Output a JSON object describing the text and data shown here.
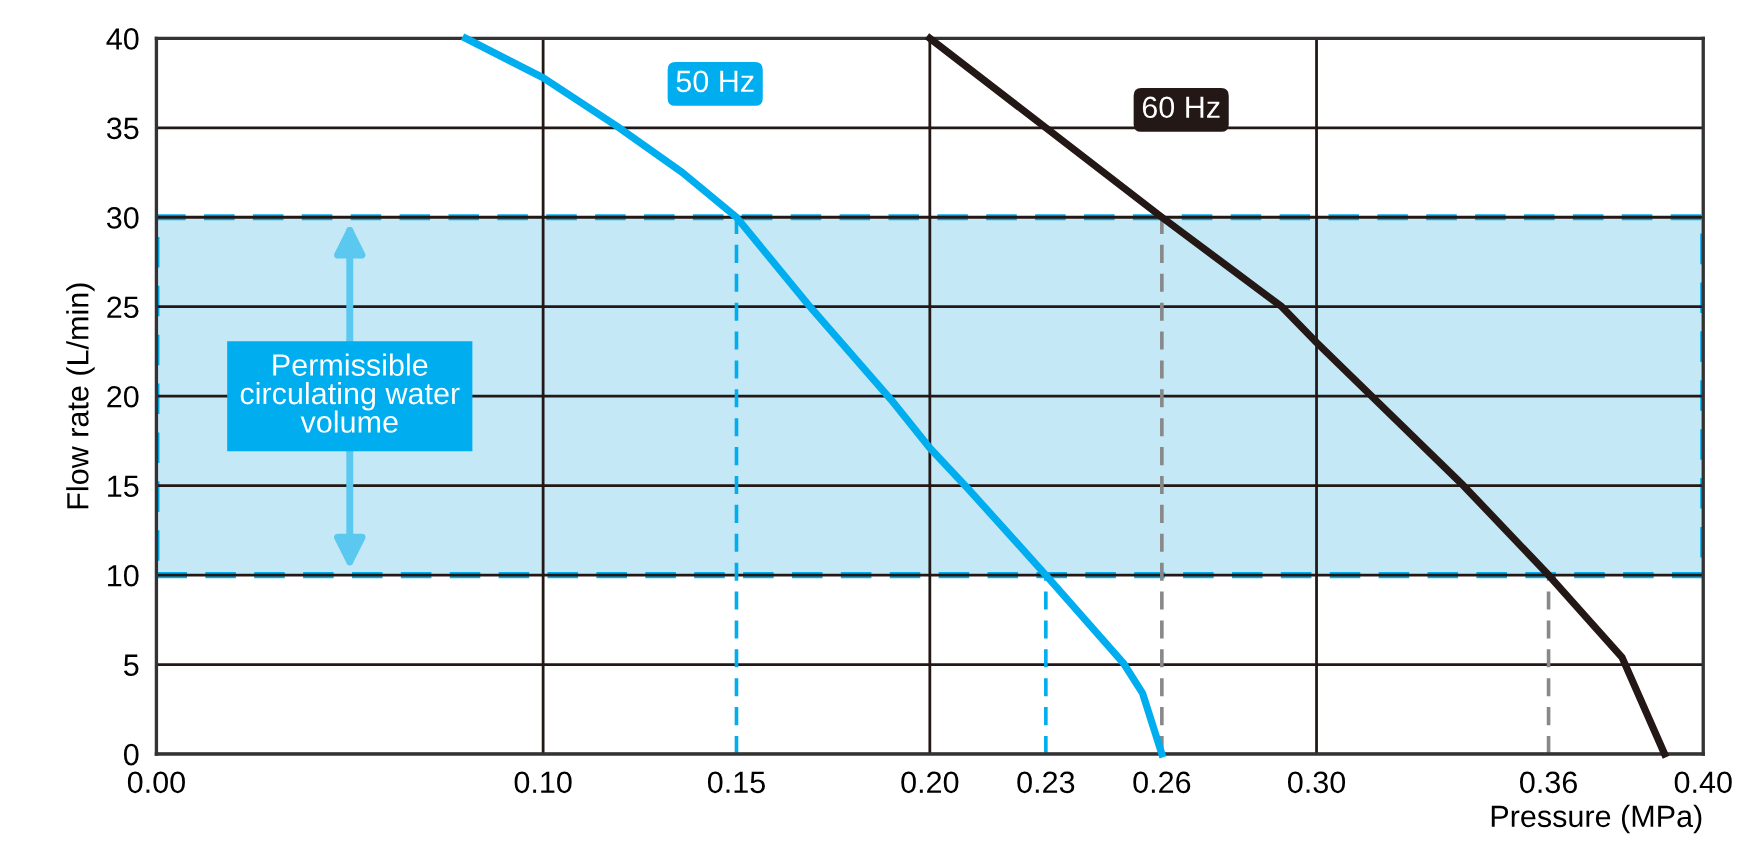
{
  "chart_data": {
    "type": "line",
    "xlabel": "Pressure (MPa)",
    "ylabel": "Flow rate (L/min)",
    "xlim": [
      0,
      0.4
    ],
    "ylim": [
      0,
      40
    ],
    "xticks": [
      {
        "value": 0,
        "label": "0.00"
      },
      {
        "value": 0.1,
        "label": "0.10"
      },
      0.15,
      {
        "value": 0.2,
        "label": "0.20"
      },
      0.23,
      0.26,
      {
        "value": 0.3,
        "label": "0.30"
      },
      0.36,
      {
        "value": 0.4,
        "label": "0.40"
      }
    ],
    "yticks": [
      0,
      5,
      10,
      15,
      20,
      25,
      30,
      35,
      40
    ],
    "grid": "y",
    "series": [
      {
        "name": "50 Hz",
        "color": "#00aeef",
        "x": [
          0.08,
          0.1,
          0.119,
          0.136,
          0.15,
          0.169,
          0.19,
          0.2,
          0.21,
          0.23,
          0.25,
          0.255,
          0.26
        ],
        "values": [
          40,
          37.8,
          35.1,
          32.5,
          30,
          25,
          19.8,
          17.1,
          14.8,
          10,
          5.1,
          3.4,
          0
        ]
      },
      {
        "name": "60 Hz",
        "color": "#231815",
        "x": [
          0.2,
          0.26,
          0.291,
          0.3,
          0.338,
          0.36,
          0.379,
          0.39
        ],
        "values": [
          40,
          30,
          25,
          23,
          15,
          10,
          5.4,
          0
        ]
      },
      {
        "color": "#00aeef",
        "line_style": "dashed",
        "x": [
          0.15,
          0.15
        ],
        "values": [
          0,
          30
        ]
      },
      {
        "color": "#00aeef",
        "line_style": "dashed",
        "x": [
          0.23,
          0.23
        ],
        "values": [
          0,
          10
        ]
      },
      {
        "color": "#888888",
        "line_style": "dashed",
        "x": [
          0.26,
          0.26
        ],
        "values": [
          0,
          30
        ]
      },
      {
        "color": "#888888",
        "line_style": "dashed",
        "x": [
          0.36,
          0.36
        ],
        "values": [
          0,
          10
        ]
      }
    ],
    "ref_lines": [
      {
        "axis": "x",
        "value": 0.1,
        "color": "#231815"
      },
      {
        "axis": "x",
        "value": 0.2,
        "color": "#231815"
      },
      {
        "axis": "x",
        "value": 0.3,
        "color": "#231815"
      }
    ],
    "bands": [
      {
        "axis": "y",
        "from": 10,
        "to": 30,
        "color": "#c5e8f7",
        "label": "Permissible\ncirculating water\nvolume"
      }
    ]
  }
}
